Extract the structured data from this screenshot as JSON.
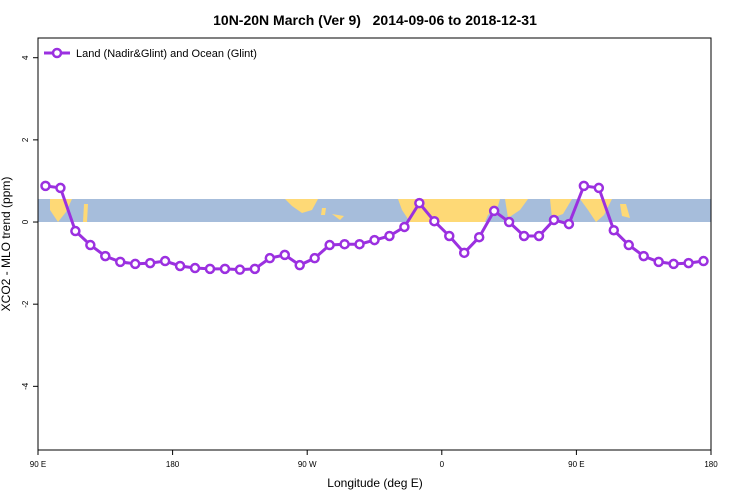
{
  "chart_data": {
    "type": "line",
    "title": "10N-20N March (Ver 9)   2014-09-06 to 2018-12-31",
    "x_label": "Longitude (deg E)",
    "y_label": "XCO2 - MLO trend (ppm)",
    "xlim": [
      90,
      540
    ],
    "ylim": [
      -5.55,
      4.48
    ],
    "xticks": [
      {
        "value": 90,
        "label": "90 E"
      },
      180,
      {
        "value": 270,
        "label": "90 W"
      },
      {
        "value": 360,
        "label": "0"
      },
      {
        "value": 450,
        "label": "90 E"
      },
      {
        "value": 540,
        "label": "180"
      }
    ],
    "yticks": [
      4,
      2,
      0,
      -2,
      -4
    ],
    "legend": "top-left",
    "x": [
      95,
      105,
      115,
      125,
      135,
      145,
      155,
      165,
      175,
      185,
      195,
      205,
      215,
      225,
      235,
      245,
      255,
      265,
      275,
      285,
      295,
      305,
      315,
      325,
      335,
      345,
      355,
      365,
      375,
      385,
      395,
      405,
      415,
      425,
      435,
      445,
      455,
      465,
      475,
      485,
      495,
      505,
      515,
      525,
      535
    ],
    "series": [
      {
        "name": "Land (Nadir&Glint) and Ocean (Glint)",
        "color": "#9b30e0",
        "values": [
          0.88,
          0.83,
          -0.22,
          -0.56,
          -0.83,
          -0.97,
          -1.02,
          -1.0,
          -0.95,
          -1.07,
          -1.12,
          -1.14,
          -1.14,
          -1.16,
          -1.14,
          -0.88,
          -0.8,
          -1.05,
          -0.88,
          -0.56,
          -0.54,
          -0.54,
          -0.44,
          -0.34,
          -0.12,
          0.46,
          0.02,
          -0.34,
          -0.75,
          -0.37,
          0.27,
          0.0,
          -0.34,
          -0.34,
          0.05,
          -0.05,
          0.88,
          0.83,
          -0.2,
          -0.56,
          -0.83,
          -0.97,
          -1.02,
          -1.0,
          -0.95
        ]
      }
    ]
  }
}
